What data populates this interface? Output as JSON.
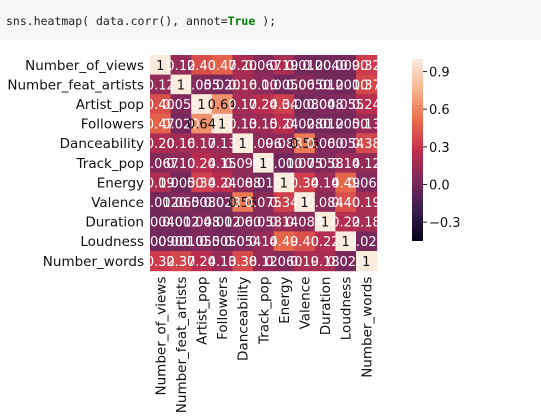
{
  "code_cell": {
    "prefix": "sns.heatmap( data.corr(), annot=",
    "keyword": "True",
    "suffix": " );"
  },
  "colors": {
    "cmap": [
      "#03051a",
      "#3a1c4e",
      "#7b2a5c",
      "#c42f4d",
      "#ea6d4b",
      "#f6b48f",
      "#faebdd"
    ],
    "annot_dark": "#111111",
    "annot_light": "#ffffff"
  },
  "chart_data": {
    "type": "heatmap",
    "title": "",
    "xlabel": "",
    "ylabel": "",
    "labels": [
      "Number_of_views",
      "Number_feat_artists",
      "Artist_pop",
      "Followers",
      "Danceability",
      "Track_pop",
      "Energy",
      "Valence",
      "Duration",
      "Loudness",
      "Number_words"
    ],
    "values": [
      [
        1,
        0.12,
        0.4,
        0.47,
        0.2,
        0.067,
        0.19,
        0.012,
        0.004,
        0.009,
        0.32
      ],
      [
        0.12,
        1,
        0.055,
        0.02,
        0.16,
        0.1,
        0.005,
        0.065,
        0.012,
        0.001,
        0.37
      ],
      [
        0.4,
        0.055,
        1,
        0.64,
        0.17,
        0.24,
        0.34,
        0.008,
        0.048,
        0.055,
        0.24
      ],
      [
        0.47,
        0.02,
        0.64,
        1,
        0.13,
        0.15,
        0.24,
        0.028,
        0.012,
        0.005,
        0.13
      ],
      [
        0.2,
        0.16,
        0.17,
        0.13,
        1,
        0.096,
        0.088,
        0.56,
        0.06,
        0.054,
        0.38
      ],
      [
        0.067,
        0.1,
        0.24,
        0.15,
        0.096,
        1,
        0.01,
        0.075,
        0.058,
        0.14,
        0.12
      ],
      [
        0.19,
        0.005,
        0.34,
        0.24,
        0.088,
        0.01,
        1,
        0.34,
        0.14,
        0.49,
        0.06
      ],
      [
        0.012,
        0.065,
        0.008,
        0.028,
        0.56,
        0.075,
        0.34,
        1,
        0.084,
        0.4,
        0.19
      ],
      [
        0.004,
        0.012,
        0.048,
        0.012,
        0.06,
        0.058,
        0.14,
        0.084,
        1,
        0.22,
        0.18
      ],
      [
        0.009,
        0.001,
        0.055,
        0.005,
        0.054,
        0.14,
        0.49,
        0.4,
        0.22,
        1,
        0.02
      ],
      [
        0.32,
        0.37,
        0.24,
        0.13,
        0.38,
        0.12,
        0.06,
        0.19,
        0.18,
        0.02,
        1
      ]
    ],
    "colorbar": {
      "vmin": -0.45,
      "vmax": 1.0,
      "ticks": [
        0.9,
        0.6,
        0.3,
        0.0,
        -0.3
      ],
      "tick_labels": [
        "0.9",
        "0.6",
        "0.3",
        "0.0",
        "−0.3"
      ]
    }
  }
}
